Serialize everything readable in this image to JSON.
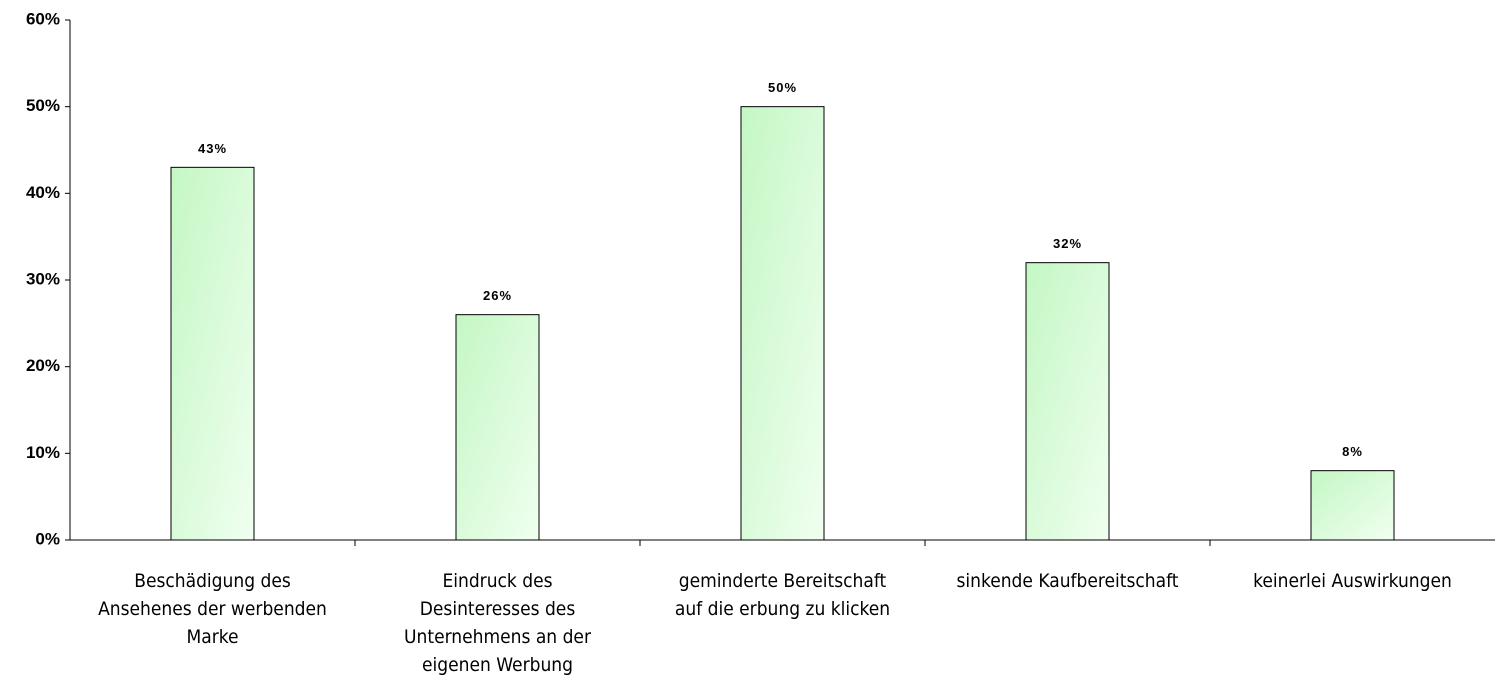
{
  "chart_data": {
    "type": "bar",
    "categories": [
      "Beschädigung des Ansehenes der werbenden Marke",
      "Eindruck des Desinteresses des Unternehmens an der eigenen Werbung",
      "geminderte Bereitschaft auf die erbung zu klicken",
      "sinkende Kaufbereitschaft",
      "keinerlei Auswirkungen"
    ],
    "values": [
      43,
      26,
      50,
      32,
      8
    ],
    "value_labels": [
      "43%",
      "26%",
      "50%",
      "32%",
      "8%"
    ],
    "color": "#ccffcc",
    "ylim": [
      0,
      60
    ],
    "yticks": [
      {
        "value": 0,
        "label": "0%"
      },
      {
        "value": 10,
        "label": "10%"
      },
      {
        "value": 20,
        "label": "20%"
      },
      {
        "value": 30,
        "label": "30%"
      },
      {
        "value": 40,
        "label": "40%"
      },
      {
        "value": 50,
        "label": "50%"
      },
      {
        "value": 60,
        "label": "60%"
      }
    ],
    "grid": false
  }
}
